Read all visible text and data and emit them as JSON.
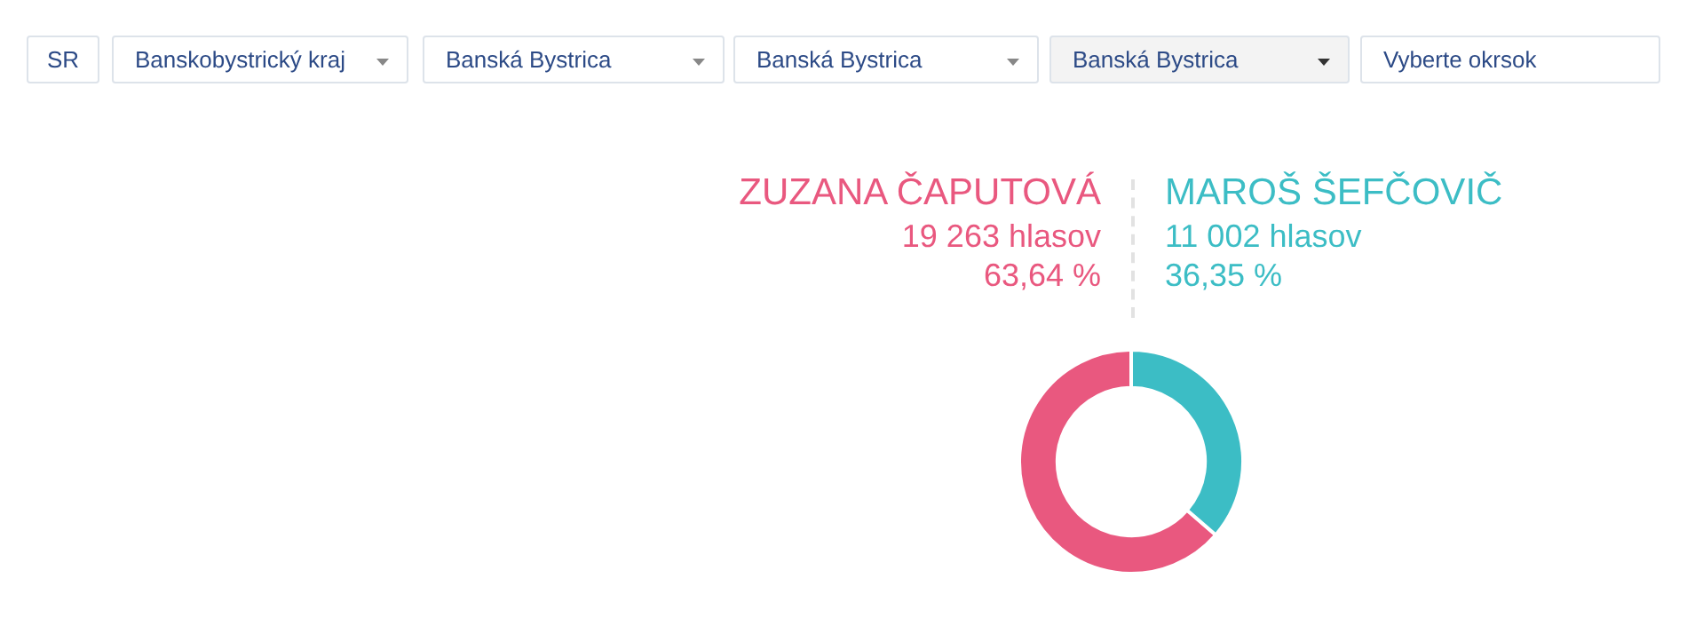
{
  "chart_data": {
    "type": "donut",
    "categories": [
      "ZUZANA ČAPUTOVÁ",
      "MAROŠ ŠEFČOVIČ"
    ],
    "values": [
      19263,
      11002
    ],
    "colors": [
      "#e9587f",
      "#3cbdc5"
    ],
    "value_labels": [
      "19 263 hlasov\n63,64 %",
      "11 002 hlasov\n36,35 %"
    ],
    "legend": false,
    "annotations": [
      "SR",
      "Banskobystrický kraj",
      "Banská Bystrica",
      "Banská Bystrica",
      "Banská Bystrica",
      "Vyberte okrsok"
    ]
  }
}
